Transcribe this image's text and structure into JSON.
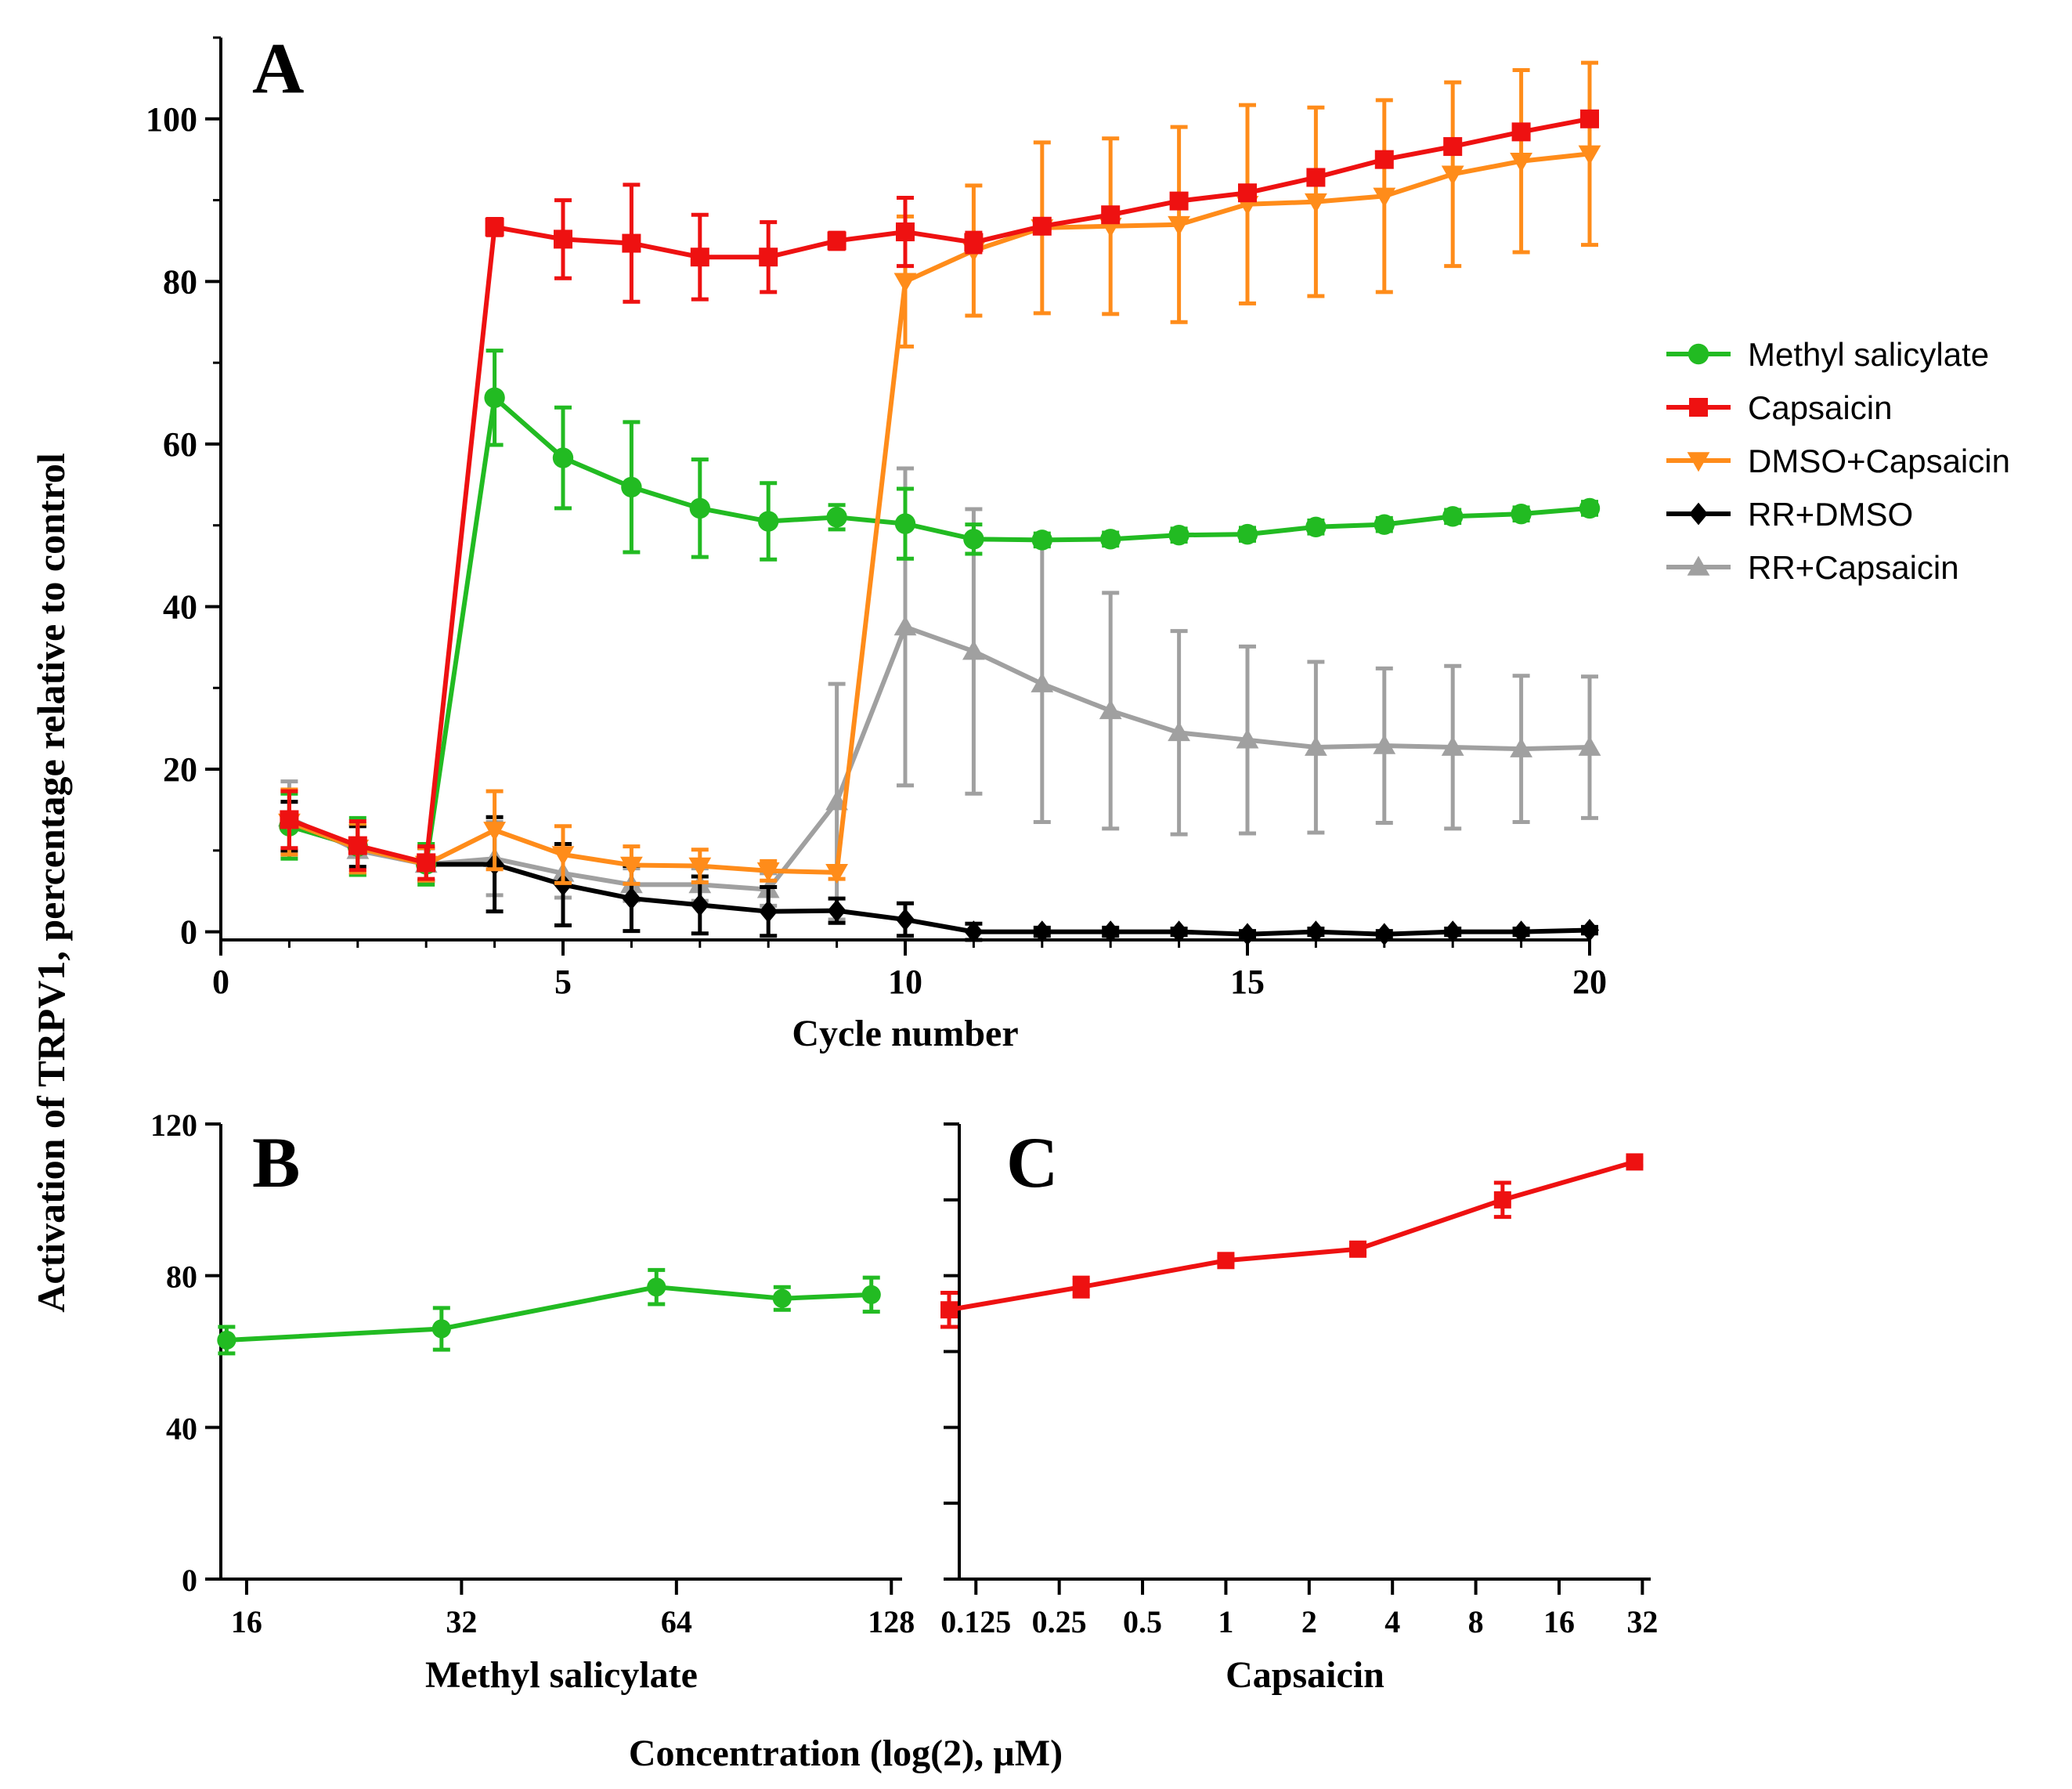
{
  "figure": {
    "ylabel": "Activation of TRPV1, percentage relative to control",
    "footer_label": "Concentration (log(2), µM)"
  },
  "legend": [
    {
      "name": "Methyl salicylate",
      "color": "#22bb22",
      "marker": "circle"
    },
    {
      "name": "Capsaicin",
      "color": "#ee1111",
      "marker": "square"
    },
    {
      "name": "DMSO+Capsaicin",
      "color": "#ff8c1a",
      "marker": "triangle-down"
    },
    {
      "name": "RR+DMSO",
      "color": "#000000",
      "marker": "diamond"
    },
    {
      "name": "RR+Capsaicin",
      "color": "#a0a0a0",
      "marker": "triangle-up"
    }
  ],
  "chart_data": [
    {
      "panel": "A",
      "type": "line",
      "xlabel": "Cycle number",
      "ylabel": "Activation of TRPV1, percentage relative to control",
      "xlim": [
        0,
        20
      ],
      "ylim": [
        -1,
        110
      ],
      "xticks": [
        0,
        5,
        10,
        15,
        20
      ],
      "yticks": [
        0,
        20,
        40,
        60,
        80,
        100
      ],
      "x": [
        1,
        2,
        3,
        4,
        5,
        6,
        7,
        8,
        9,
        10,
        11,
        12,
        13,
        14,
        15,
        16,
        17,
        18,
        19,
        20
      ],
      "series": [
        {
          "name": "RR+Capsaicin",
          "color": "#a0a0a0",
          "marker": "triangle-up",
          "values": [
            14,
            10,
            8.3,
            9,
            7.2,
            5.8,
            5.8,
            5.2,
            16,
            37.5,
            34.5,
            30.5,
            27.2,
            24.5,
            23.6,
            22.7,
            22.9,
            22.7,
            22.5,
            22.7
          ],
          "errors": [
            4.5,
            3,
            2,
            4.5,
            3,
            2,
            2,
            2,
            14.5,
            19.5,
            17.5,
            17,
            14.5,
            12.5,
            11.5,
            10.5,
            9.5,
            10,
            9,
            8.7
          ]
        },
        {
          "name": "RR+DMSO",
          "color": "#000000",
          "marker": "diamond",
          "values": [
            13,
            10.5,
            8.3,
            8.3,
            5.8,
            4.1,
            3.3,
            2.5,
            2.6,
            1.5,
            0,
            0,
            0,
            0,
            -0.3,
            0,
            -0.3,
            0,
            0,
            0.2
          ],
          "errors": [
            3,
            2.5,
            2,
            5.8,
            5,
            4,
            3.5,
            3,
            1.5,
            2,
            1,
            0.5,
            0.5,
            0.4,
            0.4,
            0.4,
            0.4,
            0.4,
            0.4,
            0.4
          ]
        },
        {
          "name": "Methyl salicylate",
          "color": "#22bb22",
          "marker": "circle",
          "values": [
            13,
            10.5,
            8.3,
            65.7,
            58.3,
            54.7,
            52.1,
            50.5,
            51,
            50.2,
            48.3,
            48.2,
            48.3,
            48.8,
            48.9,
            49.8,
            50.1,
            51.1,
            51.4,
            52.1
          ],
          "errors": [
            4,
            3.5,
            2.5,
            5.8,
            6.2,
            8,
            6,
            4.7,
            1.5,
            4.3,
            1.8,
            0.8,
            0.8,
            0.8,
            0.8,
            0.8,
            0.8,
            0.8,
            0.8,
            0.8
          ]
        },
        {
          "name": "DMSO+Capsaicin",
          "color": "#ff8c1a",
          "marker": "triangle-down",
          "values": [
            13.5,
            10.3,
            8.3,
            12.5,
            9.5,
            8.2,
            8.1,
            7.5,
            7.3,
            80,
            83.8,
            86.6,
            86.8,
            87,
            89.5,
            89.8,
            90.5,
            93.2,
            94.8,
            95.7
          ],
          "errors": [
            4,
            3,
            2,
            4.8,
            3.5,
            2.3,
            2,
            1.2,
            0.8,
            8,
            8,
            10.5,
            10.8,
            12,
            12.2,
            11.6,
            11.8,
            11.3,
            11.2,
            11.2
          ]
        },
        {
          "name": "Capsaicin",
          "color": "#ee1111",
          "marker": "square",
          "values": [
            13.8,
            10.6,
            8.5,
            86.7,
            85.2,
            84.7,
            83,
            83,
            85,
            86.1,
            84.8,
            86.8,
            88.2,
            89.9,
            90.9,
            92.8,
            95,
            96.6,
            98.4,
            100
          ],
          "errors": [
            3.5,
            3,
            2,
            1,
            4.8,
            7.2,
            5.2,
            4.3,
            1,
            4.2,
            1.2,
            0.8,
            0.8,
            0.8,
            0.8,
            0.8,
            0.8,
            0.8,
            0.8,
            0.8
          ]
        }
      ]
    },
    {
      "panel": "B",
      "type": "line",
      "xlabel": "Methyl salicylate",
      "xscale": "log2",
      "xlim_log2": [
        3.88,
        7.05
      ],
      "ylim": [
        0,
        120
      ],
      "xticks": [
        16,
        32,
        64,
        128
      ],
      "xtick_labels": [
        "16",
        "32",
        "64",
        "128"
      ],
      "yticks": [
        0,
        40,
        80,
        120
      ],
      "series": [
        {
          "name": "Methyl salicylate",
          "color": "#22bb22",
          "marker": "circle",
          "x": [
            15,
            30,
            60,
            90,
            120
          ],
          "values": [
            63,
            66,
            77,
            74,
            75
          ],
          "errors": [
            3.5,
            5.5,
            4.5,
            3,
            4.5
          ]
        }
      ]
    },
    {
      "panel": "C",
      "type": "line",
      "xlabel": "Capsaicin",
      "xscale": "log2",
      "xlim_log2": [
        -3.2,
        5.1
      ],
      "ylim": [
        0,
        120
      ],
      "xticks": [
        0.125,
        0.25,
        0.5,
        1,
        2,
        4,
        8,
        16,
        32
      ],
      "xtick_labels": [
        "0.125",
        "0.25",
        "0.5",
        "1",
        "2",
        "4",
        "8",
        "16",
        "32"
      ],
      "yticks": [
        0,
        20,
        40,
        60,
        80,
        100,
        120
      ],
      "ytick_labels": [],
      "series": [
        {
          "name": "Capsaicin",
          "color": "#ee1111",
          "marker": "square",
          "x": [
            0.1,
            0.3,
            1,
            3,
            10,
            30
          ],
          "values": [
            71,
            77,
            84,
            87,
            100,
            110
          ],
          "errors": [
            4.5,
            2.5,
            1,
            1,
            4.5,
            1
          ]
        }
      ]
    }
  ]
}
